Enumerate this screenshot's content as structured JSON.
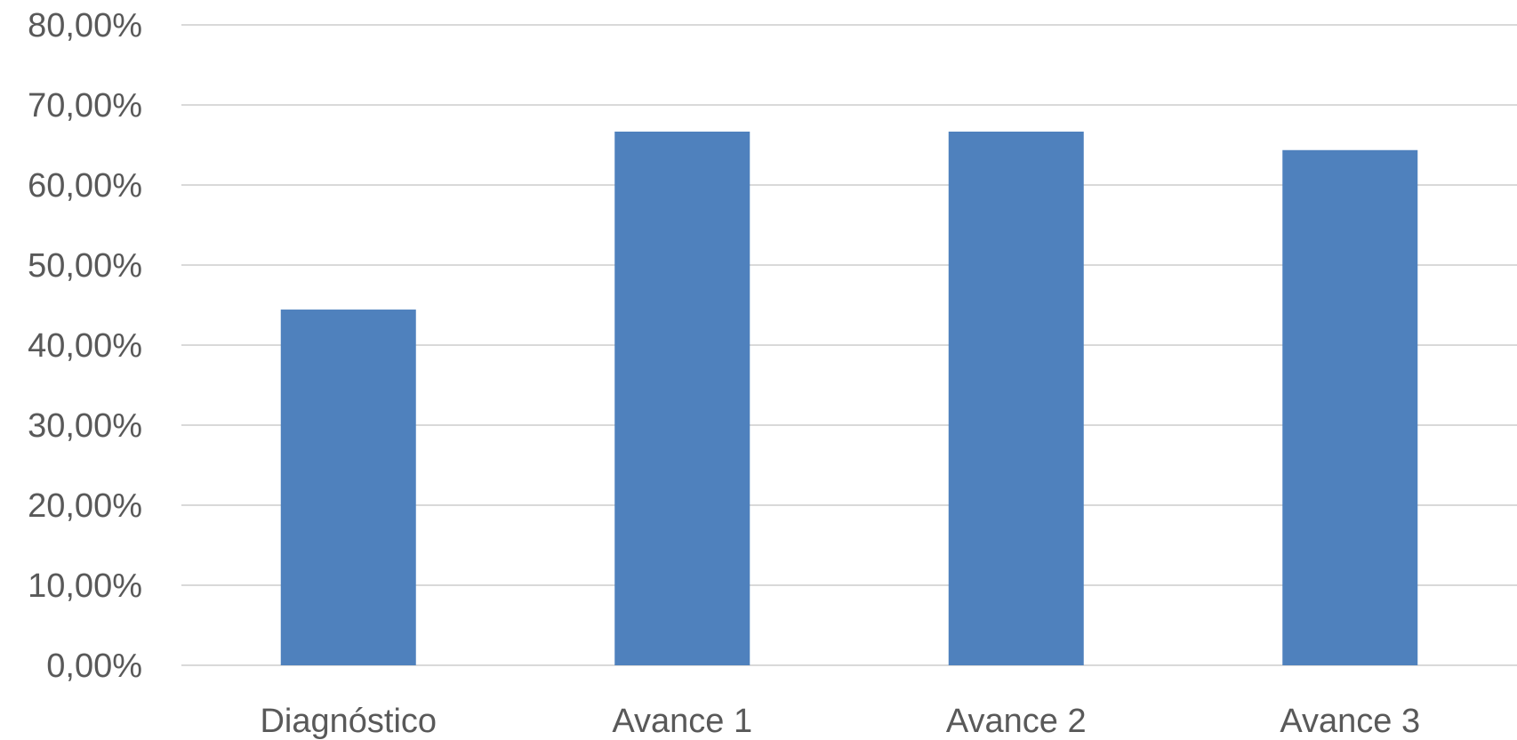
{
  "chart_data": {
    "type": "bar",
    "title": "",
    "xlabel": "",
    "ylabel": "",
    "categories": [
      "Diagnóstico",
      "Avance 1",
      "Avance 2",
      "Avance 3"
    ],
    "values": [
      0.4444,
      0.6667,
      0.6667,
      0.6436
    ],
    "ylim": [
      0,
      0.8
    ],
    "y_ticks": [
      0,
      0.1,
      0.2,
      0.3,
      0.4,
      0.5,
      0.6,
      0.7,
      0.8
    ],
    "y_tick_labels": [
      "0,00%",
      "10,00%",
      "20,00%",
      "30,00%",
      "40,00%",
      "50,00%",
      "60,00%",
      "70,00%",
      "80,00%"
    ],
    "grid": true,
    "legend": "none",
    "bar_color": "#4f81bd",
    "grid_color": "#d9d9d9",
    "text_color": "#595959"
  }
}
